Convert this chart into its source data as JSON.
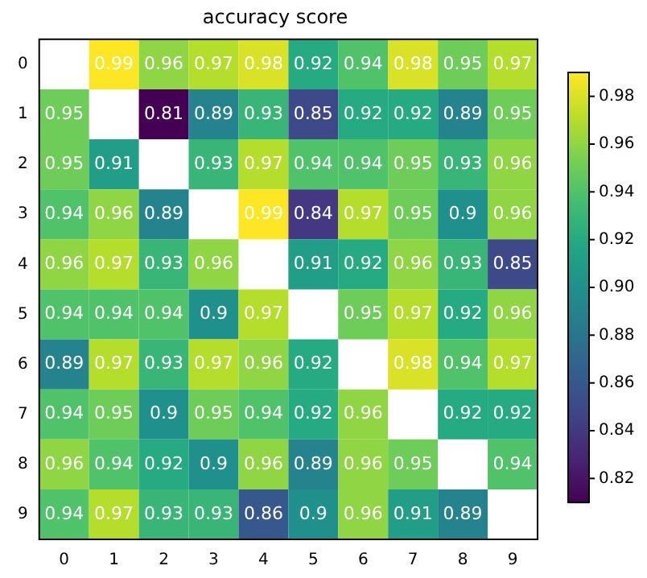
{
  "chart_data": {
    "type": "heatmap",
    "title": "accuracy score",
    "categories": [
      "0",
      "1",
      "2",
      "3",
      "4",
      "5",
      "6",
      "7",
      "8",
      "9"
    ],
    "y_categories": [
      "0",
      "1",
      "2",
      "3",
      "4",
      "5",
      "6",
      "7",
      "8",
      "9"
    ],
    "cells": [
      [
        null,
        0.99,
        0.96,
        0.97,
        0.98,
        0.92,
        0.94,
        0.98,
        0.95,
        0.97
      ],
      [
        0.95,
        null,
        0.81,
        0.89,
        0.93,
        0.85,
        0.92,
        0.92,
        0.89,
        0.95
      ],
      [
        0.95,
        0.91,
        null,
        0.93,
        0.97,
        0.94,
        0.94,
        0.95,
        0.93,
        0.96
      ],
      [
        0.94,
        0.96,
        0.89,
        null,
        0.99,
        0.84,
        0.97,
        0.95,
        0.9,
        0.96
      ],
      [
        0.96,
        0.97,
        0.93,
        0.96,
        null,
        0.91,
        0.92,
        0.96,
        0.93,
        0.85
      ],
      [
        0.94,
        0.94,
        0.94,
        0.9,
        0.97,
        null,
        0.95,
        0.97,
        0.92,
        0.96
      ],
      [
        0.89,
        0.97,
        0.93,
        0.97,
        0.96,
        0.92,
        null,
        0.98,
        0.94,
        0.97
      ],
      [
        0.94,
        0.95,
        0.9,
        0.95,
        0.94,
        0.92,
        0.96,
        null,
        0.92,
        0.92
      ],
      [
        0.96,
        0.94,
        0.92,
        0.9,
        0.96,
        0.89,
        0.96,
        0.95,
        null,
        0.94
      ],
      [
        0.94,
        0.97,
        0.93,
        0.93,
        0.86,
        0.9,
        0.96,
        0.91,
        0.89,
        null
      ]
    ],
    "data_labels": true,
    "clim": [
      0.81,
      0.99
    ],
    "cticks": [
      0.82,
      0.84,
      0.86,
      0.88,
      {
        "value": 0.9,
        "label": "0.90"
      },
      0.92,
      0.94,
      0.96,
      0.98
    ]
  }
}
